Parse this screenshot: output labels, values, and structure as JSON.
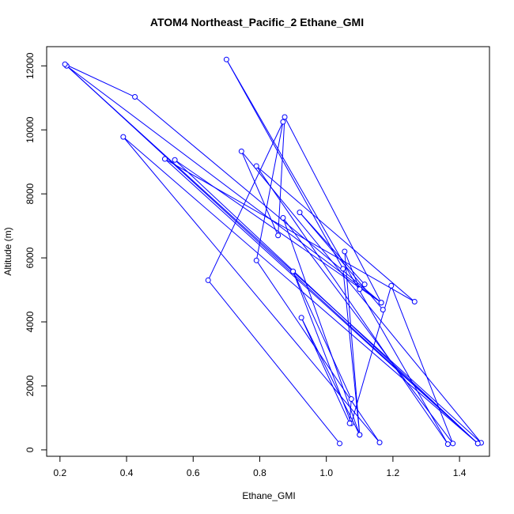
{
  "chart_data": {
    "type": "line",
    "title": "ATOM4 Northeast_Pacific_2 Ethane_GMI",
    "xlabel": "Ethane_GMI",
    "ylabel": "Altitude (m)",
    "xlim": [
      0.16,
      1.49
    ],
    "ylim": [
      -200,
      12600
    ],
    "xticks": [
      "0.2",
      "0.4",
      "0.6",
      "0.8",
      "1.0",
      "1.2",
      "1.4"
    ],
    "yticks": [
      "0",
      "2000",
      "4000",
      "6000",
      "8000",
      "10000",
      "12000"
    ],
    "grid": false,
    "marker": "open-circle",
    "color": "#0000ff",
    "series": [
      {
        "points": [
          [
            1.04,
            200
          ],
          [
            0.645,
            5300
          ],
          [
            0.87,
            10250
          ],
          [
            0.79,
            5920
          ],
          [
            1.16,
            230
          ],
          [
            0.39,
            9780
          ],
          [
            1.455,
            200
          ],
          [
            0.545,
            9060
          ],
          [
            1.165,
            4600
          ],
          [
            0.875,
            10400
          ],
          [
            0.855,
            6700
          ],
          [
            0.745,
            9330
          ],
          [
            1.465,
            220
          ],
          [
            0.22,
            12000
          ],
          [
            1.165,
            4600
          ],
          [
            0.425,
            11030
          ],
          [
            0.215,
            12050
          ],
          [
            1.455,
            200
          ],
          [
            0.515,
            9090
          ],
          [
            1.265,
            4630
          ],
          [
            0.79,
            8870
          ],
          [
            1.365,
            180
          ],
          [
            0.7,
            12200
          ],
          [
            1.05,
            5660
          ],
          [
            1.1,
            470
          ],
          [
            0.87,
            7250
          ],
          [
            1.38,
            200
          ],
          [
            1.195,
            5130
          ],
          [
            1.075,
            830
          ],
          [
            0.9,
            5580
          ],
          [
            1.075,
            1590
          ],
          [
            1.07,
            830
          ],
          [
            0.925,
            4130
          ],
          [
            1.1,
            470
          ],
          [
            1.055,
            6200
          ],
          [
            1.1,
            5020
          ],
          [
            1.115,
            5170
          ],
          [
            0.92,
            7420
          ],
          [
            1.17,
            4380
          ]
        ]
      }
    ]
  }
}
